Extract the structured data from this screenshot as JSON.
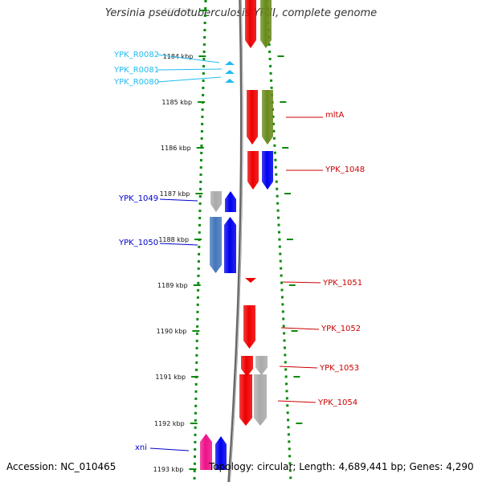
{
  "title": "Yersinia pseudotuberculosis YPIII, complete genome",
  "footer": {
    "accession": "Accession: NC_010465",
    "summary": "Topology: circular; Length: 4,689,441 bp; Genes: 4,290"
  },
  "colors": {
    "red": "#ee0000",
    "olive": "#6a8a1a",
    "blue": "#0000ee",
    "cyan": "#22bbee",
    "gray": "#aaaaaa",
    "steel": "#4477bb",
    "magenta": "#ee1188",
    "green": "#0a8a0a",
    "label_red": "#cc0000",
    "label_blue": "#0000cc",
    "label_cyan": "#33aadd"
  },
  "ticks": [
    {
      "label": "1183 kbp",
      "faded": true
    },
    {
      "label": "1184 kbp"
    },
    {
      "label": "1185 kbp"
    },
    {
      "label": "1186 kbp"
    },
    {
      "label": "1187 kbp"
    },
    {
      "label": "1188 kbp"
    },
    {
      "label": "1189 kbp"
    },
    {
      "label": "1190 kbp"
    },
    {
      "label": "1191 kbp"
    },
    {
      "label": "1192 kbp"
    },
    {
      "label": "1193 kbp"
    }
  ],
  "genes": [
    {
      "name": "YPK_R0082",
      "color": "cyan"
    },
    {
      "name": "YPK_R0081",
      "color": "cyan"
    },
    {
      "name": "YPK_R0080",
      "color": "cyan"
    },
    {
      "name": "mltA",
      "color": "label_red"
    },
    {
      "name": "YPK_1048",
      "color": "label_red"
    },
    {
      "name": "YPK_1049",
      "color": "label_blue"
    },
    {
      "name": "YPK_1050",
      "color": "label_blue"
    },
    {
      "name": "YPK_1051",
      "color": "label_red"
    },
    {
      "name": "YPK_1052",
      "color": "label_red"
    },
    {
      "name": "YPK_1053",
      "color": "label_red"
    },
    {
      "name": "YPK_1054",
      "color": "label_red"
    },
    {
      "name": "xni",
      "color": "label_blue"
    }
  ]
}
